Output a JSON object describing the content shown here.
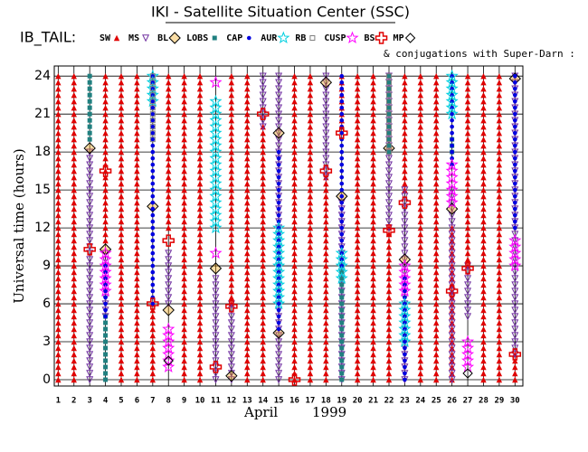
{
  "chart_data": {
    "type": "strip",
    "title": "IKI - Satellite Situation Center (SSC)",
    "legend_title": "IB_TAIL:",
    "note": "& conjugations with Super-Darn :",
    "x_label": "April",
    "x_label_2": "1999",
    "y_label": "Universal time (hours)",
    "xlim": [
      0.75,
      30.5
    ],
    "xticks": [
      1,
      2,
      3,
      4,
      5,
      6,
      7,
      8,
      9,
      10,
      11,
      12,
      13,
      14,
      15,
      16,
      17,
      18,
      19,
      20,
      21,
      22,
      23,
      24,
      25,
      26,
      27,
      28,
      29,
      30
    ],
    "ylim": [
      -0.5,
      24.8
    ],
    "yticks": [
      0,
      3,
      6,
      9,
      12,
      15,
      18,
      21,
      24
    ],
    "grid": true,
    "series": [
      {
        "name": "SW",
        "color": "#e00000",
        "symbol": "tri",
        "day": [
          1,
          2,
          4,
          5,
          6,
          7,
          8,
          9,
          10,
          12,
          13,
          14,
          16,
          17,
          18,
          19,
          20,
          21,
          22,
          23,
          24,
          25,
          26,
          27,
          28,
          29,
          30
        ],
        "from": [
          0,
          0,
          11,
          0,
          0,
          0,
          12,
          0,
          0,
          6,
          0,
          0,
          0,
          0,
          0,
          20,
          0,
          0,
          0,
          15,
          0,
          0,
          0,
          9,
          0,
          0,
          0
        ],
        "to": [
          24,
          24,
          24,
          24,
          24,
          6,
          24,
          24,
          24,
          24,
          24,
          20,
          24,
          24,
          16,
          24,
          24,
          24,
          12,
          24,
          24,
          24,
          12,
          24,
          24,
          24,
          2
        ]
      },
      {
        "name": "MS",
        "color": "#7030a0",
        "symbol": "dtri",
        "day": [
          3,
          4,
          8,
          11,
          12,
          14,
          15,
          18,
          19,
          22,
          23,
          26,
          27,
          30
        ],
        "from": [
          0,
          5,
          6,
          0,
          0,
          20,
          0,
          16,
          0,
          12,
          0,
          0,
          5,
          2
        ],
        "to": [
          18,
          10,
          10,
          8,
          6,
          24,
          24,
          24,
          14,
          24,
          15,
          15,
          9,
          24
        ]
      },
      {
        "name": "BL",
        "color": "#f0a000",
        "symbol": "diamond",
        "day": [
          3,
          4,
          7,
          8,
          11,
          12,
          15,
          15,
          18,
          19,
          22,
          23,
          26,
          30
        ],
        "from": [
          18.3,
          10.3,
          13.7,
          5.5,
          8.8,
          0.3,
          19.5,
          3.7,
          23.5,
          14.5,
          18.3,
          9.5,
          13.5,
          23.8
        ],
        "to": [
          18.3,
          10.3,
          13.7,
          5.5,
          8.8,
          0.3,
          19.5,
          3.7,
          23.5,
          14.5,
          18.3,
          9.5,
          13.5,
          23.8
        ]
      },
      {
        "name": "LOBS",
        "color": "#208080",
        "symbol": "square",
        "day": [
          3,
          4,
          19,
          22,
          26
        ],
        "from": [
          19,
          0,
          0,
          18,
          18
        ],
        "to": [
          24,
          5,
          9,
          24,
          19
        ]
      },
      {
        "name": "CAP",
        "color": "#0000e0",
        "symbol": "dot",
        "day": [
          4,
          7,
          15,
          19,
          23,
          26,
          30
        ],
        "from": [
          5,
          6,
          4,
          9,
          0,
          17,
          12
        ],
        "to": [
          9,
          24,
          18,
          24,
          8,
          24,
          24
        ]
      },
      {
        "name": "AUR",
        "color": "#00d0e0",
        "symbol": "star",
        "day": [
          7,
          11,
          15,
          19,
          23,
          26
        ],
        "from": [
          22,
          12,
          6,
          8,
          3,
          21
        ],
        "to": [
          24,
          22,
          12,
          10,
          6,
          24
        ]
      },
      {
        "name": "RB",
        "color": "#808080",
        "symbol": "osquare",
        "day": [
          7,
          22
        ],
        "from": [
          19,
          18
        ],
        "to": [
          24,
          24
        ]
      },
      {
        "name": "CUSP",
        "color": "#ff00ff",
        "symbol": "star",
        "day": [
          4,
          8,
          11,
          11,
          23,
          26,
          27,
          30
        ],
        "from": [
          7,
          1,
          10,
          23.5,
          7,
          14,
          1,
          9
        ],
        "to": [
          10,
          4,
          10,
          23.5,
          9,
          17,
          3,
          11
        ]
      },
      {
        "name": "BS",
        "color": "#e00000",
        "symbol": "cross",
        "day": [
          3,
          4,
          7,
          8,
          11,
          12,
          14,
          16,
          18,
          19,
          22,
          23,
          26,
          27,
          30
        ],
        "from": [
          10.3,
          16.5,
          6,
          11,
          1,
          5.8,
          21,
          0,
          16.5,
          19.5,
          11.8,
          14,
          7,
          8.8,
          2
        ],
        "to": [
          10.3,
          16.5,
          6,
          11,
          1,
          5.8,
          21,
          0,
          16.5,
          19.5,
          11.8,
          14,
          7,
          8.8,
          2
        ]
      },
      {
        "name": "MP",
        "color": "#000000",
        "symbol": "odiamond",
        "day": [
          8,
          27
        ],
        "from": [
          1.5,
          0.5
        ],
        "to": [
          1.5,
          0.5
        ]
      }
    ]
  }
}
